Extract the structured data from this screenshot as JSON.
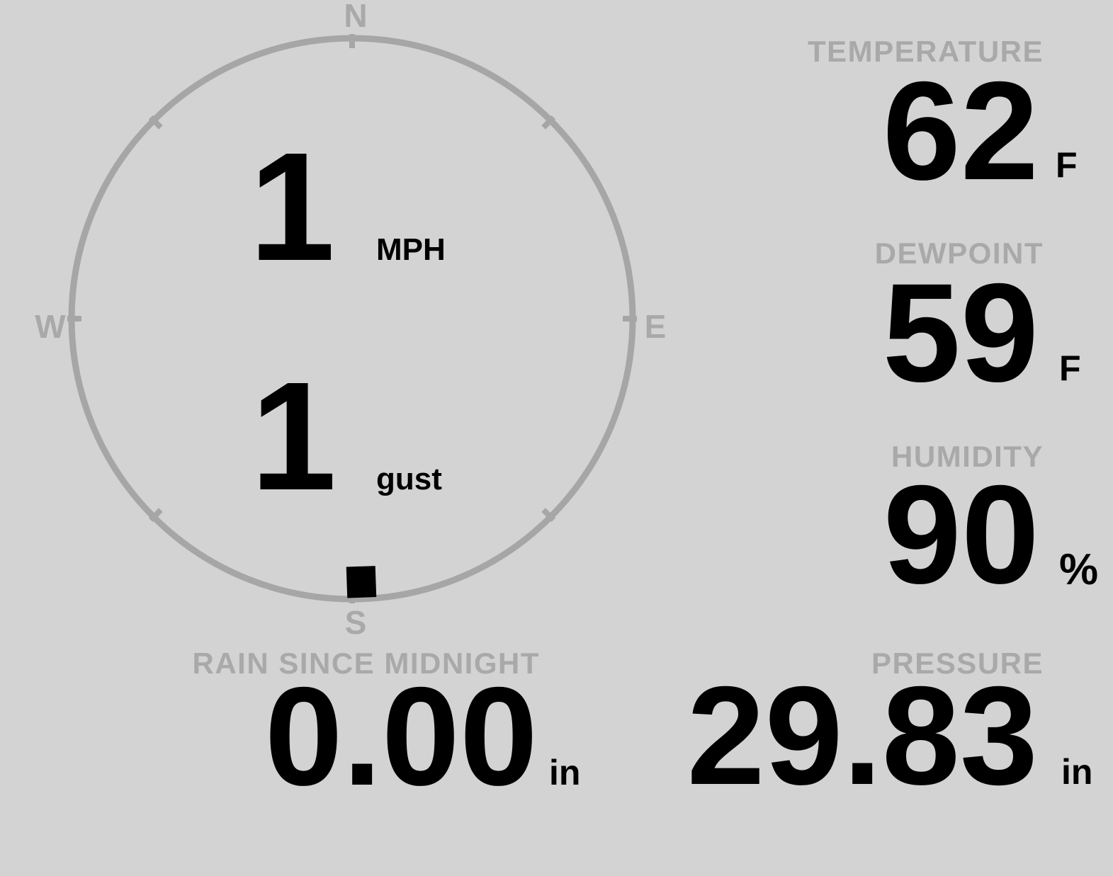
{
  "wind": {
    "speed": "1",
    "speed_unit": "MPH",
    "gust": "1",
    "gust_unit": "gust",
    "direction_deg": 178,
    "compass": {
      "n": "N",
      "e": "E",
      "s": "S",
      "w": "W"
    }
  },
  "readings": {
    "temperature": {
      "label": "TEMPERATURE",
      "value": "62",
      "unit": "F"
    },
    "dewpoint": {
      "label": "DEWPOINT",
      "value": "59",
      "unit": "F"
    },
    "humidity": {
      "label": "HUMIDITY",
      "value": "90",
      "unit": "%"
    },
    "rain_since_midnight": {
      "label": "RAIN SINCE MIDNIGHT",
      "value": "0.00",
      "unit": "in"
    },
    "pressure": {
      "label": "PRESSURE",
      "value": "29.83",
      "unit": "in"
    }
  },
  "colors": {
    "background": "#d3d3d3",
    "muted_text": "#a9a9a9",
    "compass_ring": "#a6a6a6",
    "value_text": "#000000",
    "direction_marker": "#000000"
  }
}
